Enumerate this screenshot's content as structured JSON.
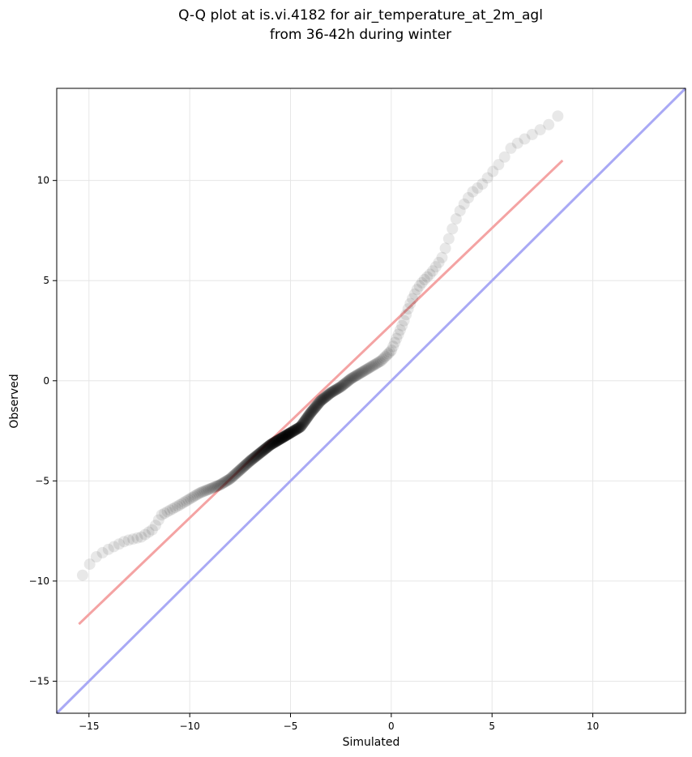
{
  "chart_data": {
    "type": "scatter",
    "title_lines": [
      "Q-Q plot at is.vi.4182 for air_temperature_at_2m_agl",
      "from 36-42h during winter"
    ],
    "xlabel": "Simulated",
    "ylabel": "Observed",
    "xlim": [
      -16.6,
      14.6
    ],
    "ylim": [
      -16.6,
      14.6
    ],
    "xticks": [
      -15,
      -10,
      -5,
      0,
      5,
      10
    ],
    "yticks": [
      -15,
      -10,
      -5,
      0,
      5,
      10
    ],
    "xtick_labels": [
      "−15",
      "−10",
      "−5",
      "0",
      "5",
      "10"
    ],
    "ytick_labels": [
      "−15",
      "−10",
      "−5",
      "0",
      "5",
      "10"
    ],
    "grid": true,
    "colors": {
      "points": "#000000",
      "fit_line": "#f4a3a3",
      "identity_line": "#a9a9f5"
    },
    "fit_line": {
      "x": [
        -15.5,
        8.5
      ],
      "y": [
        -12.15,
        11.0
      ]
    },
    "identity_line": {
      "x": [
        -16.6,
        14.6
      ],
      "y": [
        -16.6,
        14.6
      ]
    },
    "quantile_curve": {
      "x": [
        -15.5,
        -14.8,
        -14.2,
        -13.2,
        -12.4,
        -11.8,
        -11.4,
        -10.5,
        -9.5,
        -8.5,
        -8.0,
        -7.0,
        -6.0,
        -5.0,
        -4.5,
        -4.0,
        -3.5,
        -3.0,
        -2.5,
        -2.0,
        -1.0,
        -0.5,
        0.0,
        0.3,
        0.6,
        0.8,
        1.0,
        1.3,
        1.6,
        2.0,
        2.5,
        3.0,
        3.3,
        3.6,
        4.0,
        4.5,
        5.0,
        5.5,
        6.0,
        7.0,
        8.0,
        8.5
      ],
      "y": [
        -10.0,
        -8.9,
        -8.5,
        -8.0,
        -7.8,
        -7.4,
        -6.7,
        -6.2,
        -5.6,
        -5.2,
        -4.9,
        -4.0,
        -3.2,
        -2.6,
        -2.3,
        -1.6,
        -1.0,
        -0.6,
        -0.3,
        0.1,
        0.7,
        1.0,
        1.5,
        2.2,
        2.9,
        3.5,
        4.0,
        4.6,
        5.0,
        5.4,
        6.1,
        7.5,
        8.3,
        8.8,
        9.4,
        9.8,
        10.4,
        11.0,
        11.7,
        12.3,
        12.9,
        13.5
      ]
    }
  }
}
